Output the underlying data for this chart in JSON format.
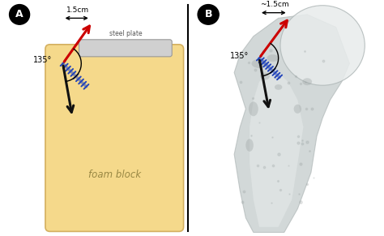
{
  "background_color": "#ffffff",
  "panel_A_label": "A",
  "panel_B_label": "B",
  "foam_color": "#f5d98b",
  "foam_edge_color": "#d4b060",
  "steel_plate_color": "#d0d0d0",
  "steel_plate_edge": "#999999",
  "screw_color": "#2244bb",
  "angle_label": "135°",
  "distance_label_A": "1.5cm",
  "distance_label_B": "~1.5cm",
  "foam_block_label": "foam block",
  "steel_plate_label": "steel plate",
  "bone_base": "#c0c8c8",
  "bone_light": "#e8ecec",
  "bone_medium": "#b0b8b8",
  "bone_dark": "#909898",
  "red_arrow": "#cc0000",
  "black_arrow": "#111111"
}
